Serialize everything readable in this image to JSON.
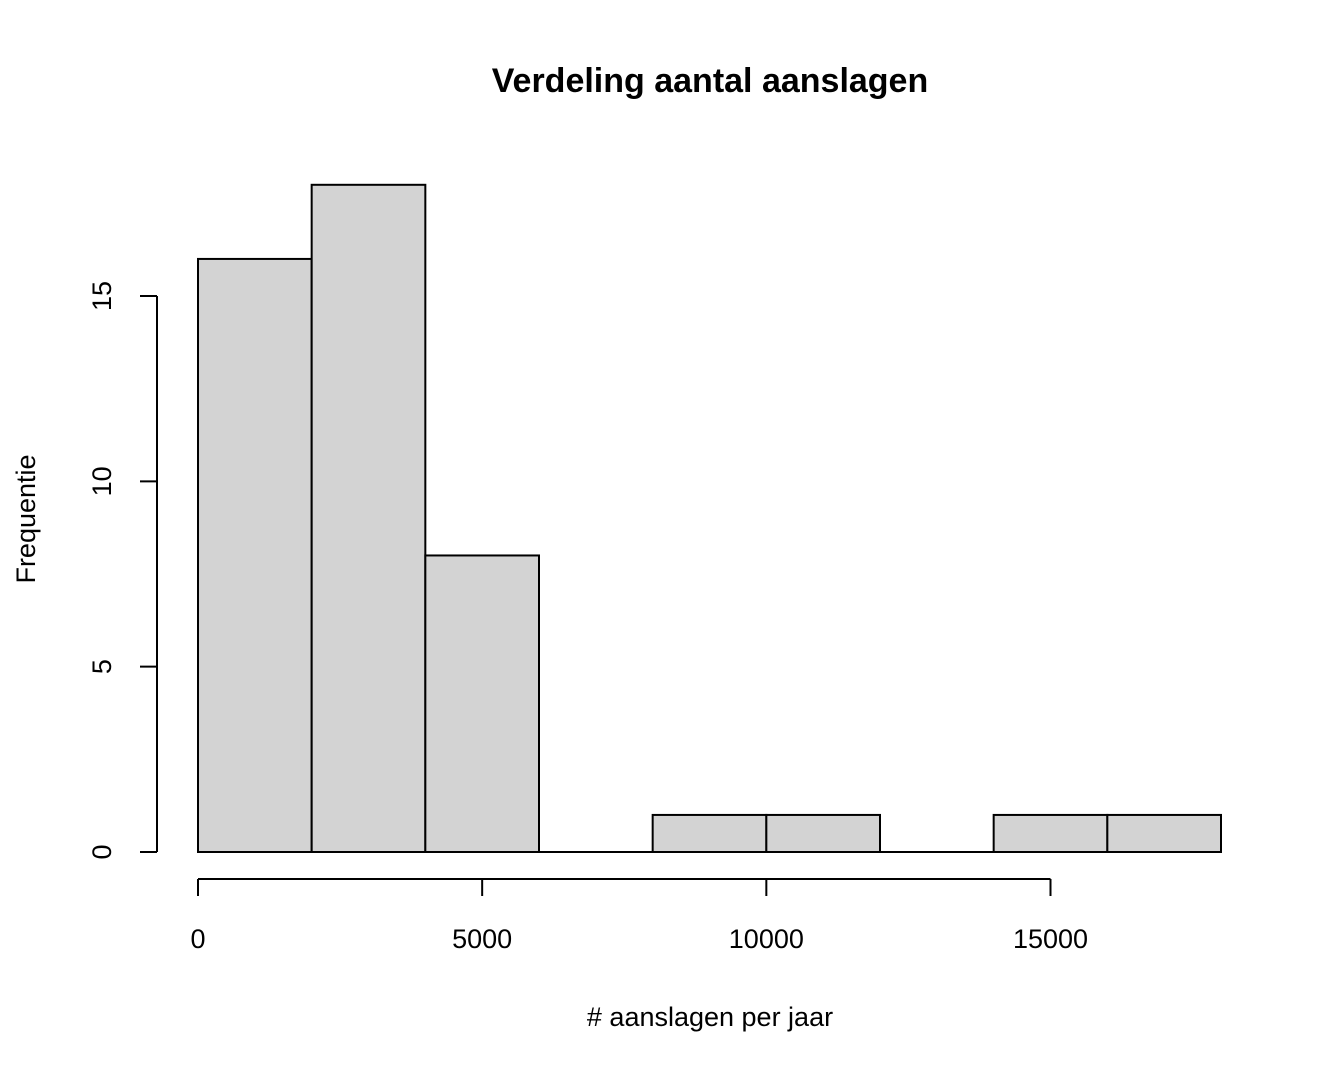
{
  "chart_data": {
    "type": "bar",
    "subtype": "histogram",
    "title": "Verdeling aantal aanslagen",
    "xlabel": "# aanslagen per jaar",
    "ylabel": "Frequentie",
    "bins": [
      {
        "start": 0,
        "end": 2000,
        "count": 16
      },
      {
        "start": 2000,
        "end": 4000,
        "count": 18
      },
      {
        "start": 4000,
        "end": 6000,
        "count": 8
      },
      {
        "start": 6000,
        "end": 8000,
        "count": 0
      },
      {
        "start": 8000,
        "end": 10000,
        "count": 1
      },
      {
        "start": 10000,
        "end": 12000,
        "count": 1
      },
      {
        "start": 12000,
        "end": 14000,
        "count": 0
      },
      {
        "start": 14000,
        "end": 16000,
        "count": 1
      },
      {
        "start": 16000,
        "end": 18000,
        "count": 1
      }
    ],
    "xticks": [
      0,
      5000,
      10000,
      15000
    ],
    "yticks": [
      0,
      5,
      10,
      15
    ],
    "xlim": [
      0,
      18000
    ],
    "ylim": [
      0,
      18
    ],
    "bar_color": "#d3d3d3",
    "edge_color": "#000000",
    "grid": false,
    "legend": "none"
  }
}
